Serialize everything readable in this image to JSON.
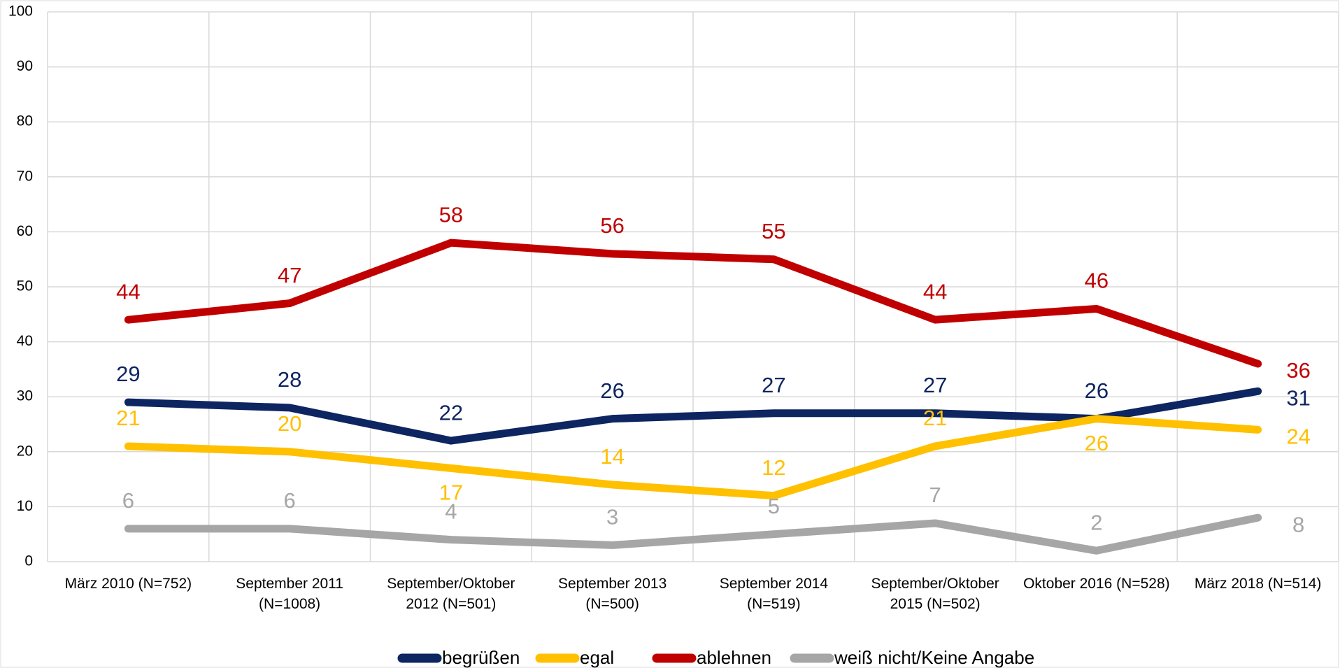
{
  "chart_data": {
    "type": "line",
    "categories": [
      [
        "März 2010 (N=752)"
      ],
      [
        "September 2011",
        "(N=1008)"
      ],
      [
        "September/Oktober",
        "2012 (N=501)"
      ],
      [
        "September 2013",
        "(N=500)"
      ],
      [
        "September 2014",
        "(N=519)"
      ],
      [
        "September/Oktober",
        "2015 (N=502)"
      ],
      [
        "Oktober 2016 (N=528)"
      ],
      [
        "März 2018 (N=514)"
      ]
    ],
    "series": [
      {
        "name": "begrüßen",
        "color": "#0d2560",
        "values": [
          29,
          28,
          22,
          26,
          27,
          27,
          26,
          31
        ]
      },
      {
        "name": "egal",
        "color": "#ffc000",
        "values": [
          21,
          20,
          17,
          14,
          12,
          21,
          26,
          24
        ]
      },
      {
        "name": "ablehnen",
        "color": "#c00000",
        "values": [
          44,
          47,
          58,
          56,
          55,
          44,
          46,
          36
        ]
      },
      {
        "name": "weiß nicht/Keine Angabe",
        "color": "#a6a6a6",
        "values": [
          6,
          6,
          4,
          3,
          5,
          7,
          2,
          8
        ]
      }
    ],
    "ylim": [
      0,
      100
    ],
    "yticks": [
      0,
      10,
      20,
      30,
      40,
      50,
      60,
      70,
      80,
      90,
      100
    ],
    "grid": true,
    "legend": "bottom"
  }
}
